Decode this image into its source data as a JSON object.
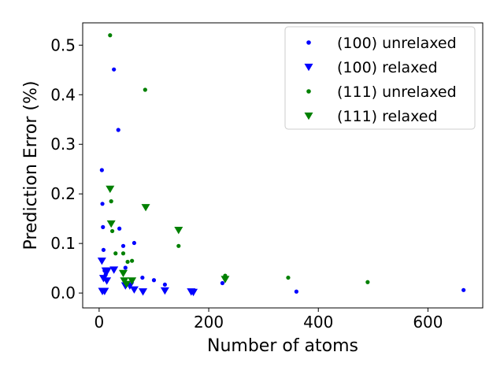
{
  "chart_data": {
    "type": "scatter",
    "title": "",
    "xlabel": "Number of atoms",
    "ylabel": "Prediction Error (%)",
    "xlim": [
      -30,
      700
    ],
    "ylim": [
      -0.03,
      0.545
    ],
    "xticks": [
      0,
      200,
      400,
      600
    ],
    "yticks": [
      0.0,
      0.1,
      0.2,
      0.3,
      0.4,
      0.5
    ],
    "xtick_labels": [
      "0",
      "200",
      "400",
      "600"
    ],
    "ytick_labels": [
      "0.0",
      "0.1",
      "0.2",
      "0.3",
      "0.4",
      "0.5"
    ],
    "grid": false,
    "legend_position": "top-right",
    "series": [
      {
        "name": "(100) unrelaxed",
        "marker": "dot",
        "color": "#0000ff",
        "points": [
          [
            5,
            0.248
          ],
          [
            6,
            0.18
          ],
          [
            7,
            0.133
          ],
          [
            8,
            0.087
          ],
          [
            10,
            0.045
          ],
          [
            12,
            0.038
          ],
          [
            27,
            0.451
          ],
          [
            35,
            0.329
          ],
          [
            37,
            0.13
          ],
          [
            44,
            0.095
          ],
          [
            48,
            0.051
          ],
          [
            56,
            0.015
          ],
          [
            64,
            0.101
          ],
          [
            79,
            0.031
          ],
          [
            100,
            0.026
          ],
          [
            120,
            0.017
          ],
          [
            225,
            0.02
          ],
          [
            360,
            0.003
          ],
          [
            665,
            0.006
          ]
        ]
      },
      {
        "name": "(100) relaxed",
        "marker": "triangle-down",
        "color": "#0000ff",
        "points": [
          [
            5,
            0.065
          ],
          [
            6,
            0.004
          ],
          [
            8,
            0.03
          ],
          [
            10,
            0.004
          ],
          [
            12,
            0.045
          ],
          [
            14,
            0.025
          ],
          [
            15,
            0.045
          ],
          [
            27,
            0.047
          ],
          [
            48,
            0.015
          ],
          [
            56,
            0.015
          ],
          [
            64,
            0.007
          ],
          [
            80,
            0.003
          ],
          [
            120,
            0.005
          ],
          [
            168,
            0.003
          ],
          [
            172,
            0.002
          ]
        ]
      },
      {
        "name": "(111) unrelaxed",
        "marker": "dot",
        "color": "#008000",
        "points": [
          [
            20,
            0.52
          ],
          [
            22,
            0.185
          ],
          [
            24,
            0.125
          ],
          [
            30,
            0.08
          ],
          [
            44,
            0.08
          ],
          [
            52,
            0.063
          ],
          [
            60,
            0.065
          ],
          [
            84,
            0.41
          ],
          [
            145,
            0.095
          ],
          [
            230,
            0.035
          ],
          [
            345,
            0.031
          ],
          [
            490,
            0.022
          ]
        ]
      },
      {
        "name": "(111) relaxed",
        "marker": "triangle-down",
        "color": "#008000",
        "points": [
          [
            20,
            0.21
          ],
          [
            22,
            0.14
          ],
          [
            44,
            0.04
          ],
          [
            46,
            0.025
          ],
          [
            50,
            0.018
          ],
          [
            60,
            0.025
          ],
          [
            85,
            0.173
          ],
          [
            145,
            0.127
          ],
          [
            230,
            0.028
          ]
        ]
      }
    ]
  }
}
